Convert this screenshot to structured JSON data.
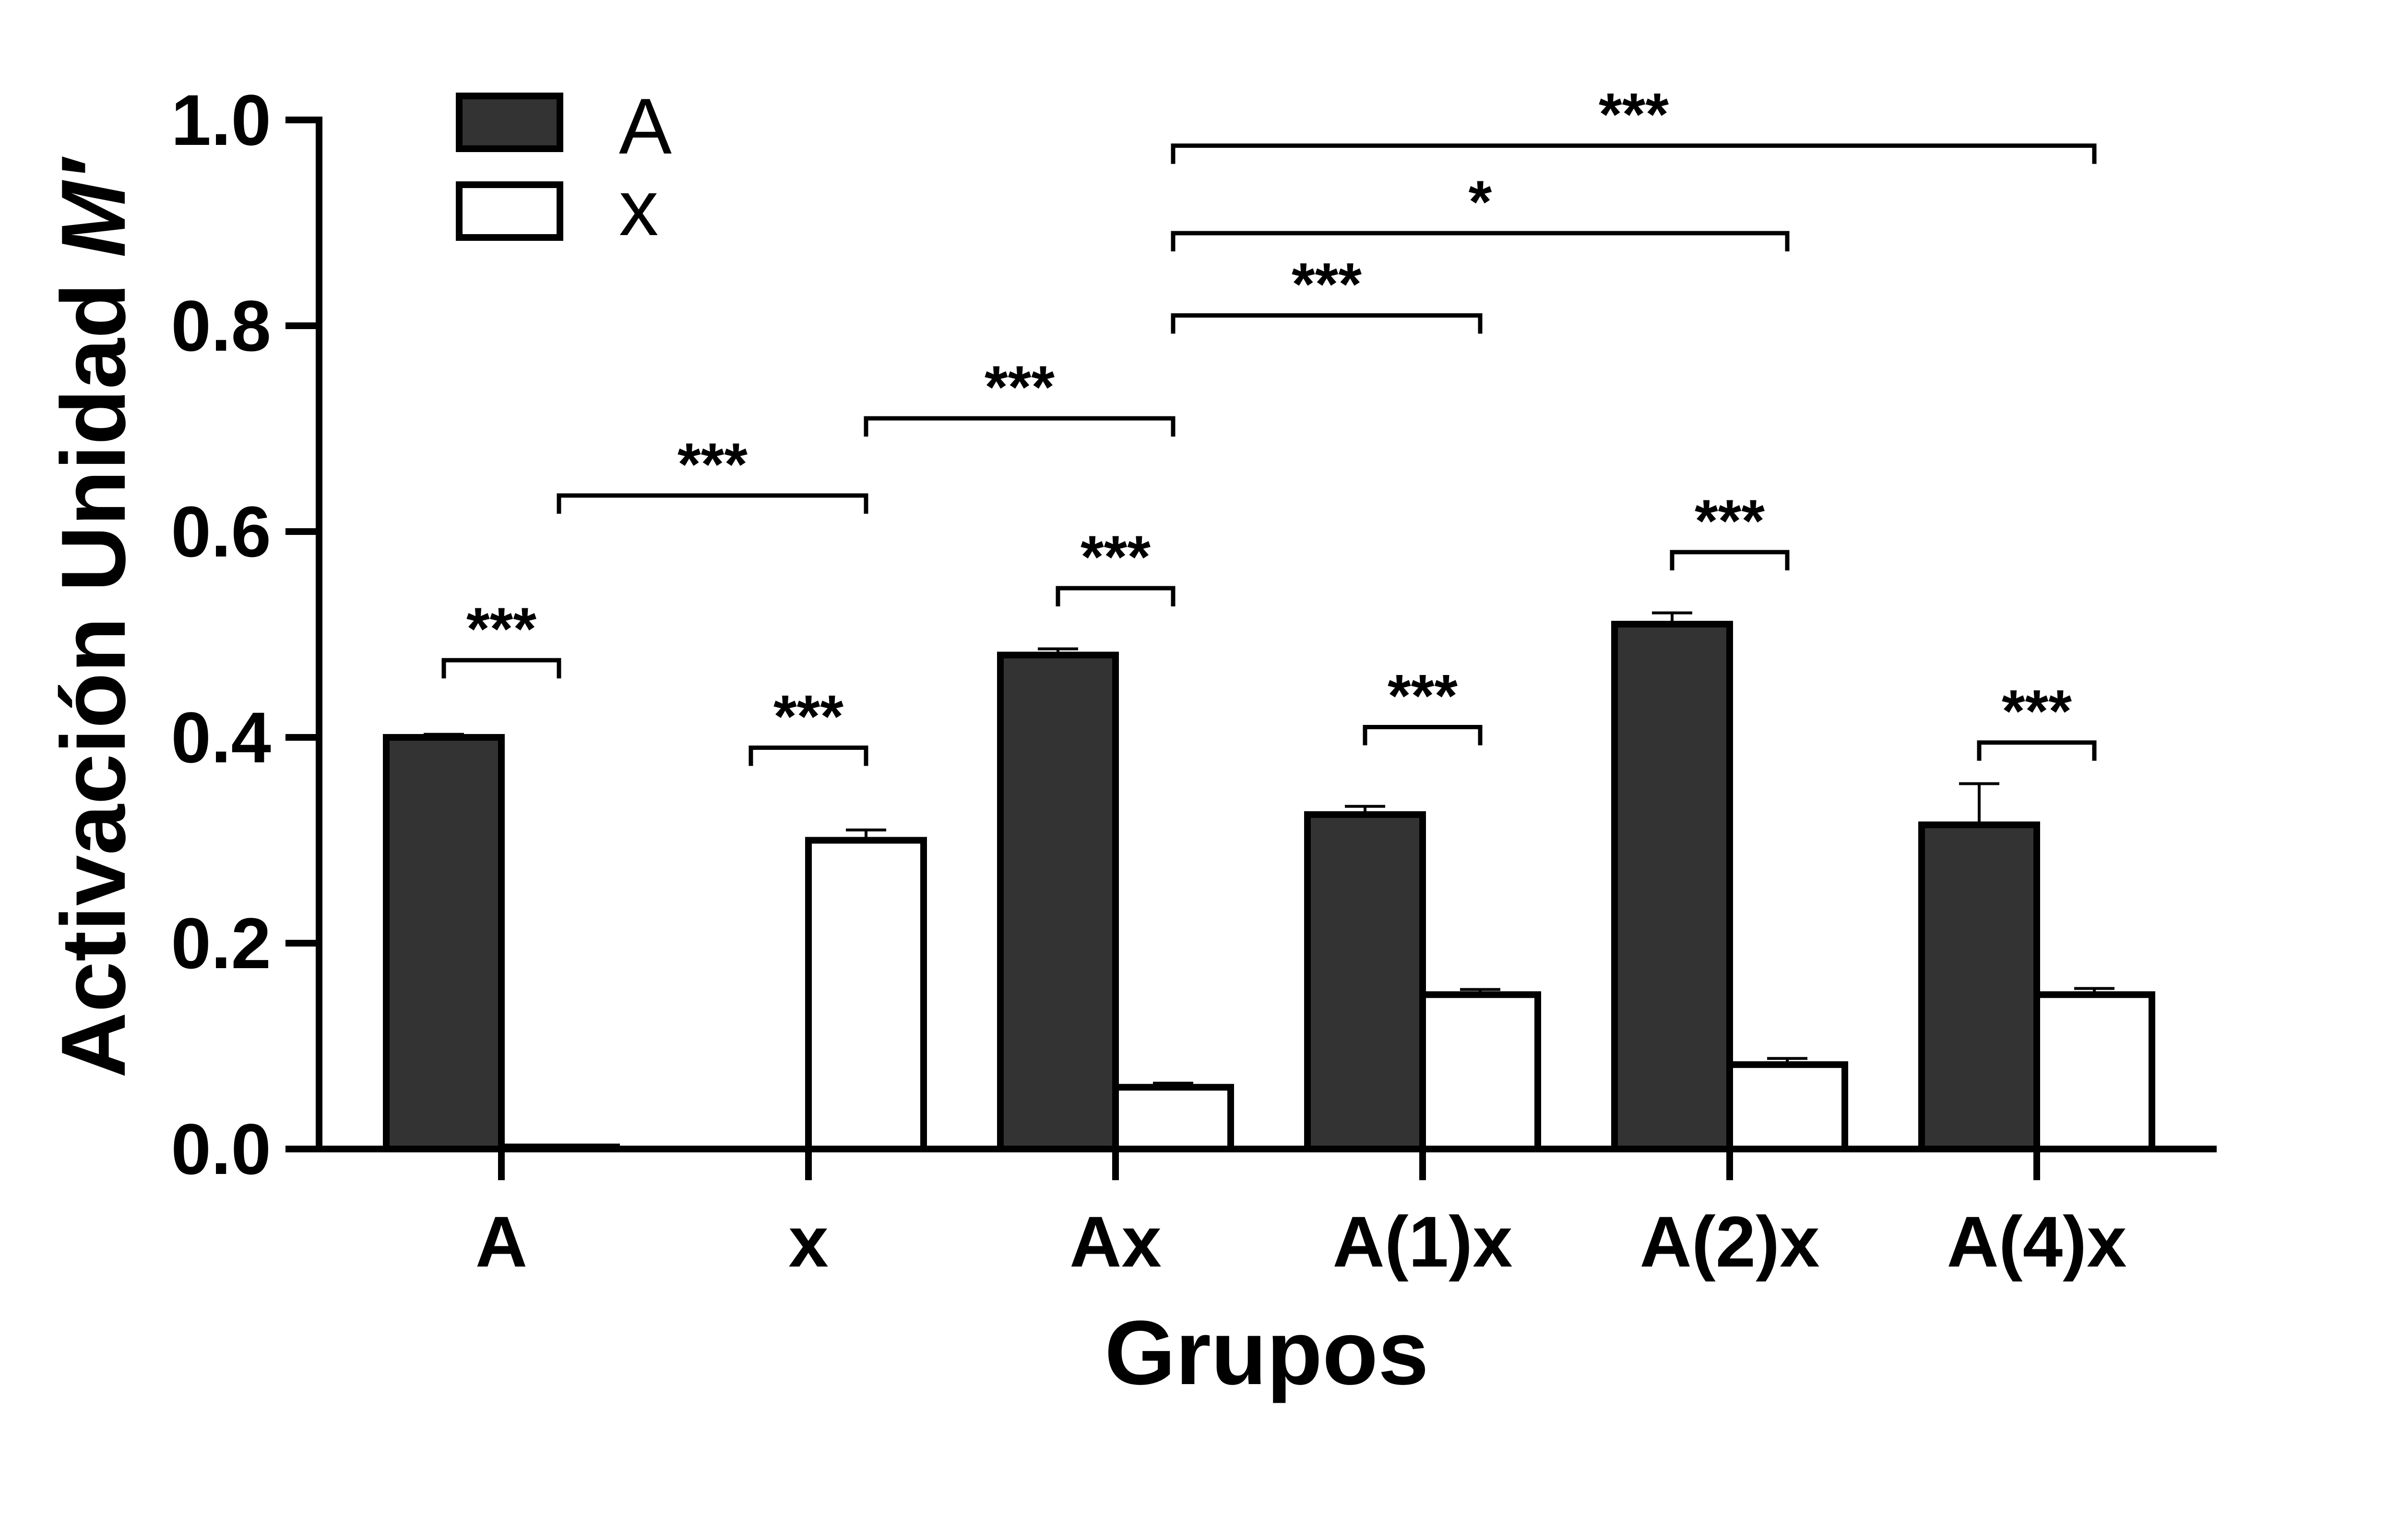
{
  "chart_data": {
    "type": "bar",
    "xlabel": "Grupos",
    "ylabel_prefix": "Activación Unidad ",
    "ylabel_italic": "M′",
    "ylim": [
      0,
      1.0
    ],
    "yticks": [
      "0.0",
      "0.2",
      "0.4",
      "0.6",
      "0.8",
      "1.0"
    ],
    "categories": [
      "A",
      "x",
      "Ax",
      "A(1)x",
      "A(2)x",
      "A(4)x"
    ],
    "series": [
      {
        "name": "A",
        "color": "#333333",
        "values": [
          0.4,
          0.0,
          0.48,
          0.325,
          0.51,
          0.315
        ],
        "errors": [
          0.003,
          0.0,
          0.006,
          0.008,
          0.011,
          0.04
        ]
      },
      {
        "name": "x",
        "color": "#ffffff",
        "values": [
          0.002,
          0.3,
          0.06,
          0.15,
          0.082,
          0.15
        ],
        "errors": [
          0.0,
          0.01,
          0.004,
          0.005,
          0.006,
          0.006
        ]
      }
    ],
    "legend_position": "top-left",
    "grid": false,
    "significance": [
      {
        "label": "***",
        "from": {
          "cat": 0,
          "series": 0
        },
        "to": {
          "cat": 0,
          "series": 1
        },
        "y": 0.475
      },
      {
        "label": "***",
        "from": {
          "cat": 1,
          "series": 0
        },
        "to": {
          "cat": 1,
          "series": 1
        },
        "y": 0.39
      },
      {
        "label": "***",
        "from": {
          "cat": 2,
          "series": 0
        },
        "to": {
          "cat": 2,
          "series": 1
        },
        "y": 0.545
      },
      {
        "label": "***",
        "from": {
          "cat": 3,
          "series": 0
        },
        "to": {
          "cat": 3,
          "series": 1
        },
        "y": 0.41
      },
      {
        "label": "***",
        "from": {
          "cat": 4,
          "series": 0
        },
        "to": {
          "cat": 4,
          "series": 1
        },
        "y": 0.58
      },
      {
        "label": "***",
        "from": {
          "cat": 5,
          "series": 0
        },
        "to": {
          "cat": 5,
          "series": 1
        },
        "y": 0.395
      },
      {
        "label": "***",
        "from": {
          "cat": 0,
          "series": 1
        },
        "to": {
          "cat": 1,
          "series": 1
        },
        "y": 0.635
      },
      {
        "label": "***",
        "from": {
          "cat": 1,
          "series": 1
        },
        "to": {
          "cat": 2,
          "series": 1
        },
        "y": 0.71
      },
      {
        "label": "***",
        "from": {
          "cat": 2,
          "series": 1
        },
        "to": {
          "cat": 3,
          "series": 1
        },
        "y": 0.81
      },
      {
        "label": "*",
        "from": {
          "cat": 2,
          "series": 1
        },
        "to": {
          "cat": 4,
          "series": 1
        },
        "y": 0.89
      },
      {
        "label": "***",
        "from": {
          "cat": 2,
          "series": 1
        },
        "to": {
          "cat": 5,
          "series": 1
        },
        "y": 0.975
      }
    ]
  }
}
